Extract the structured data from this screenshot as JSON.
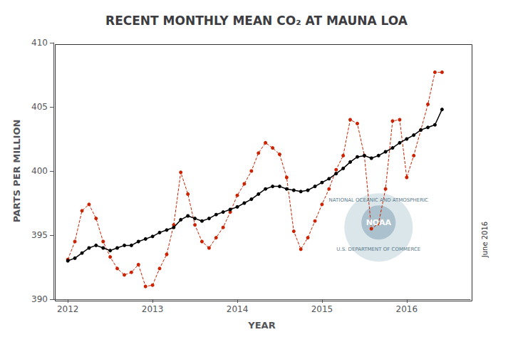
{
  "chart_data": {
    "type": "line",
    "title": "RECENT MONTHLY MEAN CO₂ AT MAUNA LOA",
    "xlabel": "YEAR",
    "ylabel": "PARTS PER MILLION",
    "xlim": [
      2011.83,
      2016.75
    ],
    "xticks": [
      2012,
      2013,
      2014,
      2015,
      2016
    ],
    "ylim": [
      390,
      410
    ],
    "yticks": [
      390,
      395,
      400,
      405,
      410
    ],
    "grid": false,
    "annotations": [
      "NATIONAL OCEANIC AND ATMOSPHERIC",
      "NOAA",
      "U.S. DEPARTMENT OF COMMERCE",
      "June 2016"
    ],
    "x": [
      2012.0,
      2012.083,
      2012.167,
      2012.25,
      2012.333,
      2012.417,
      2012.5,
      2012.583,
      2012.667,
      2012.75,
      2012.833,
      2012.917,
      2013.0,
      2013.083,
      2013.167,
      2013.25,
      2013.333,
      2013.417,
      2013.5,
      2013.583,
      2013.667,
      2013.75,
      2013.833,
      2013.917,
      2014.0,
      2014.083,
      2014.167,
      2014.25,
      2014.333,
      2014.417,
      2014.5,
      2014.583,
      2014.667,
      2014.75,
      2014.833,
      2014.917,
      2015.0,
      2015.083,
      2015.167,
      2015.25,
      2015.333,
      2015.417,
      2015.5,
      2015.583,
      2015.667,
      2015.75,
      2015.833,
      2015.917,
      2016.0,
      2016.083,
      2016.167,
      2016.25,
      2016.333,
      2016.417
    ],
    "series": [
      {
        "color": "#cc2200",
        "line_style": "dashed",
        "marker": "circle",
        "values": [
          393.1,
          394.5,
          396.9,
          397.4,
          396.3,
          394.5,
          393.3,
          392.4,
          391.9,
          392.1,
          392.7,
          391.0,
          391.1,
          392.4,
          393.5,
          395.8,
          399.9,
          398.2,
          395.8,
          394.5,
          394.0,
          394.8,
          395.6,
          396.8,
          398.1,
          399.0,
          400.0,
          401.4,
          402.2,
          401.8,
          401.3,
          399.5,
          395.3,
          393.9,
          394.8,
          396.1,
          397.4,
          398.6,
          400.1,
          401.2,
          404.0,
          403.7,
          401.2,
          395.5,
          395.9,
          398.6,
          403.9,
          404.0,
          399.5,
          401.2,
          403.2,
          405.2,
          407.7,
          407.7
        ]
      },
      {
        "color": "#000000",
        "line_style": "solid",
        "marker": "circle",
        "values": [
          393.0,
          393.2,
          393.6,
          394.0,
          394.2,
          394.0,
          393.8,
          394.0,
          394.2,
          394.2,
          394.5,
          394.7,
          394.9,
          395.2,
          395.4,
          395.6,
          396.2,
          396.5,
          396.3,
          396.1,
          396.3,
          396.6,
          396.8,
          397.0,
          397.2,
          397.5,
          397.8,
          398.2,
          398.6,
          398.8,
          398.8,
          398.6,
          398.5,
          398.4,
          398.5,
          398.8,
          399.1,
          399.4,
          399.8,
          400.2,
          400.7,
          401.1,
          401.2,
          401.0,
          401.2,
          401.5,
          401.8,
          402.2,
          402.5,
          402.8,
          403.2,
          403.4,
          403.6,
          404.8
        ]
      }
    ]
  }
}
